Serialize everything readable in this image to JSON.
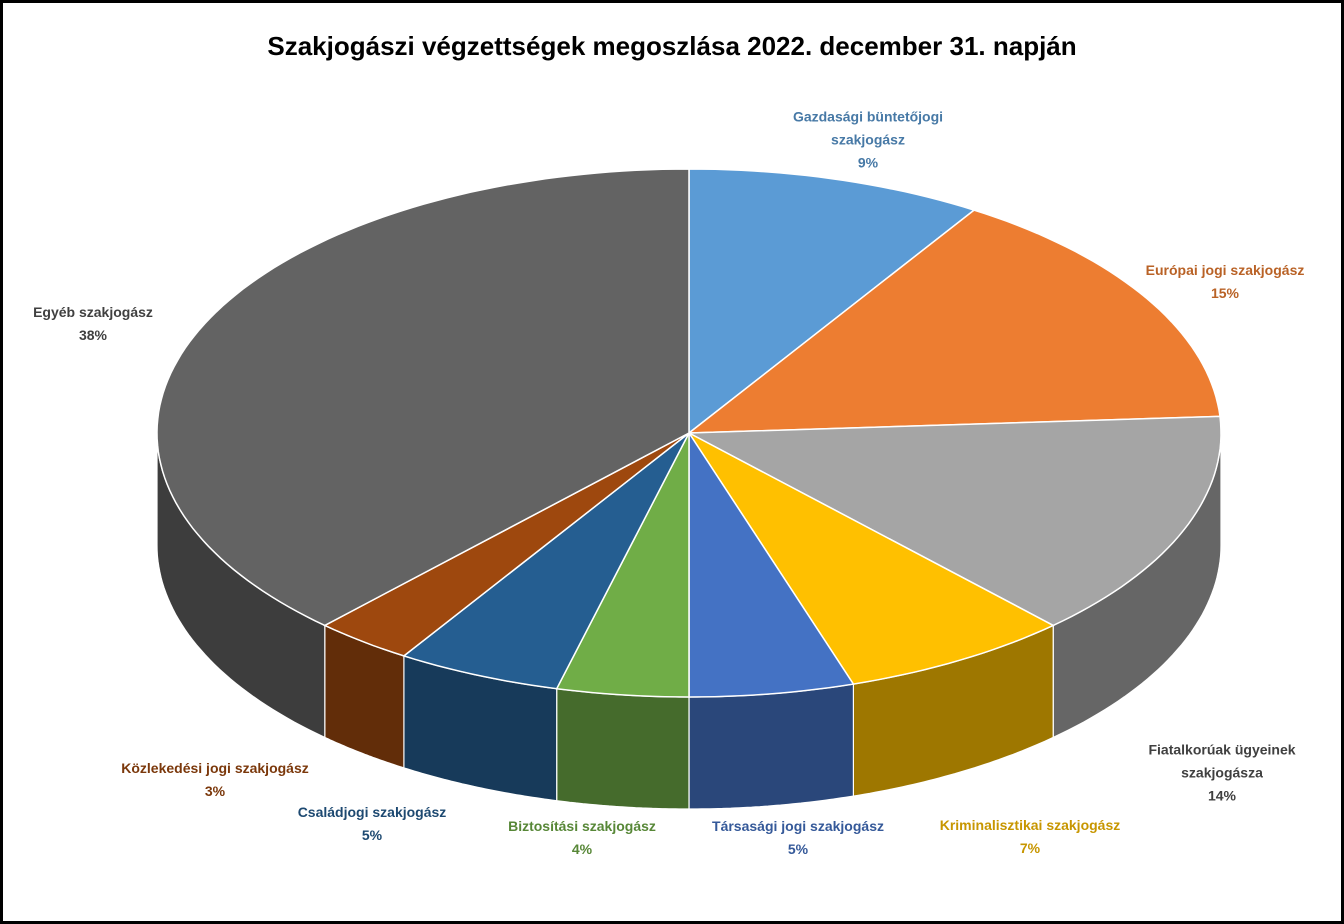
{
  "chart_data": {
    "type": "pie3d",
    "title": "Szakjogászi végzettségek megoszlása 2022. december 31. napján",
    "categories": [
      "Gazdasági büntetőjogi szakjogász",
      "Európai jogi szakjogász",
      "Fiatalkorúak ügyeinek szakjogásza",
      "Kriminalisztikai szakjogász",
      "Társasági jogi szakjogász",
      "Biztosítási szakjogász",
      "Családjogi szakjogász",
      "Közlekedési jogi szakjogász",
      "Egyéb szakjogász"
    ],
    "values": [
      9,
      15,
      14,
      7,
      5,
      4,
      5,
      3,
      38
    ],
    "value_labels": [
      "9%",
      "15%",
      "14%",
      "7%",
      "5%",
      "4%",
      "5%",
      "3%",
      "38%"
    ],
    "colors": [
      "#5b9bd5",
      "#ed7d31",
      "#a5a5a5",
      "#ffc000",
      "#4472c4",
      "#70ad47",
      "#255e91",
      "#9e480e",
      "#636363"
    ]
  }
}
